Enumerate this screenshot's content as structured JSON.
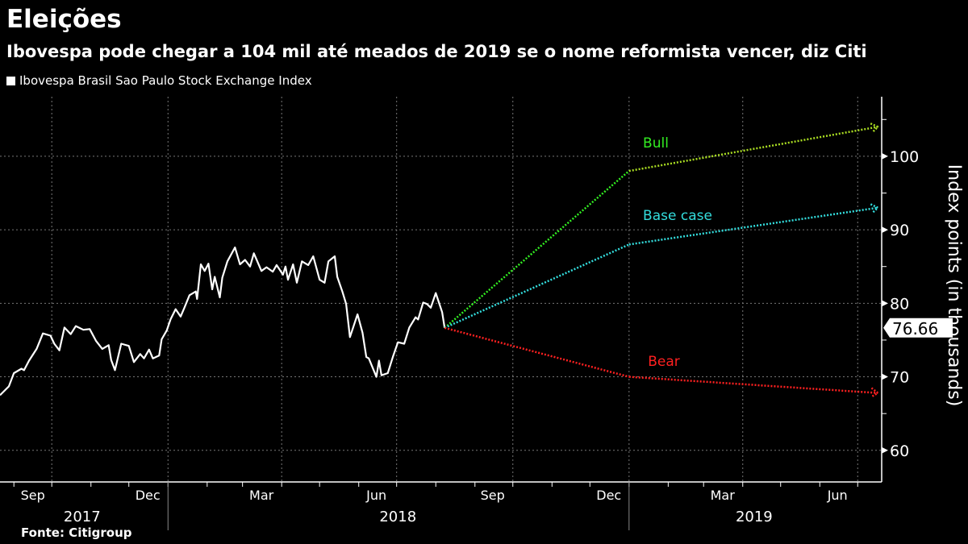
{
  "title": "Eleições",
  "subtitle": "Ibovespa pode chegar a 104 mil até meados de 2019 se o nome reformista vencer, diz Citi",
  "legend": "Ibovespa Brasil Sao Paulo Stock Exchange Index",
  "source": "Fonte: Citigroup",
  "chart_data": {
    "type": "line",
    "ylabel": "Index points  (in thousands)",
    "xlim": [
      "2017-08-21",
      "2019-07-20"
    ],
    "ylim": [
      55.7,
      108.1
    ],
    "yticks": [
      60,
      70,
      80,
      90,
      100
    ],
    "month_labels": [
      {
        "label": "Sep",
        "date": "2017-09-16"
      },
      {
        "label": "Dec",
        "date": "2017-12-16"
      },
      {
        "label": "Mar",
        "date": "2018-03-16"
      },
      {
        "label": "Jun",
        "date": "2018-06-15"
      },
      {
        "label": "Sep",
        "date": "2018-09-15"
      },
      {
        "label": "Dec",
        "date": "2018-12-16"
      },
      {
        "label": "Mar",
        "date": "2019-03-16"
      },
      {
        "label": "Jun",
        "date": "2019-06-15"
      }
    ],
    "year_labels": [
      {
        "label": "2017",
        "date": "2017-10-25"
      },
      {
        "label": "2018",
        "date": "2018-07-02"
      },
      {
        "label": "2019",
        "date": "2019-04-10"
      }
    ],
    "grid": true,
    "last_value_label": "76.66",
    "colors": {
      "index": "#ffffff",
      "Bull": "#33ee22",
      "Base case": "#33dddd",
      "Bear": "#ff2020",
      "Bull_end": "#aadd22"
    },
    "series": [
      {
        "name": "Ibovespa Brasil Sao Paulo Stock Exchange Index",
        "points": [
          [
            "2017-08-21",
            67.5
          ],
          [
            "2017-08-28",
            68.7
          ],
          [
            "2017-09-01",
            70.5
          ],
          [
            "2017-09-07",
            71.1
          ],
          [
            "2017-09-09",
            70.9
          ],
          [
            "2017-09-13",
            72.2
          ],
          [
            "2017-09-19",
            73.8
          ],
          [
            "2017-09-24",
            75.9
          ],
          [
            "2017-09-30",
            75.6
          ],
          [
            "2017-10-03",
            74.5
          ],
          [
            "2017-10-07",
            73.6
          ],
          [
            "2017-10-11",
            76.7
          ],
          [
            "2017-10-16",
            75.8
          ],
          [
            "2017-10-20",
            76.9
          ],
          [
            "2017-10-26",
            76.4
          ],
          [
            "2017-10-31",
            76.5
          ],
          [
            "2017-11-05",
            74.9
          ],
          [
            "2017-11-10",
            73.8
          ],
          [
            "2017-11-15",
            74.3
          ],
          [
            "2017-11-17",
            72.3
          ],
          [
            "2017-11-20",
            70.9
          ],
          [
            "2017-11-25",
            74.5
          ],
          [
            "2017-12-01",
            74.2
          ],
          [
            "2017-12-05",
            72.0
          ],
          [
            "2017-12-10",
            73.1
          ],
          [
            "2017-12-13",
            72.5
          ],
          [
            "2017-12-17",
            73.7
          ],
          [
            "2017-12-20",
            72.5
          ],
          [
            "2017-12-25",
            72.9
          ],
          [
            "2017-12-27",
            75.1
          ],
          [
            "2017-12-31",
            76.3
          ],
          [
            "2018-01-03",
            77.8
          ],
          [
            "2018-01-07",
            79.2
          ],
          [
            "2018-01-11",
            78.2
          ],
          [
            "2018-01-14",
            79.4
          ],
          [
            "2018-01-18",
            81.1
          ],
          [
            "2018-01-23",
            81.6
          ],
          [
            "2018-01-24",
            80.6
          ],
          [
            "2018-01-27",
            85.3
          ],
          [
            "2018-01-30",
            84.4
          ],
          [
            "2018-02-02",
            85.4
          ],
          [
            "2018-02-05",
            81.9
          ],
          [
            "2018-02-07",
            83.6
          ],
          [
            "2018-02-11",
            80.8
          ],
          [
            "2018-02-13",
            83.5
          ],
          [
            "2018-02-17",
            85.7
          ],
          [
            "2018-02-23",
            87.6
          ],
          [
            "2018-02-27",
            85.3
          ],
          [
            "2018-03-03",
            85.9
          ],
          [
            "2018-03-07",
            85.0
          ],
          [
            "2018-03-10",
            86.8
          ],
          [
            "2018-03-16",
            84.4
          ],
          [
            "2018-03-20",
            84.9
          ],
          [
            "2018-03-25",
            84.3
          ],
          [
            "2018-03-28",
            85.2
          ],
          [
            "2018-04-02",
            83.9
          ],
          [
            "2018-04-04",
            85.0
          ],
          [
            "2018-04-06",
            83.2
          ],
          [
            "2018-04-10",
            85.3
          ],
          [
            "2018-04-13",
            82.8
          ],
          [
            "2018-04-17",
            85.7
          ],
          [
            "2018-04-22",
            85.2
          ],
          [
            "2018-04-26",
            86.4
          ],
          [
            "2018-05-01",
            83.2
          ],
          [
            "2018-05-05",
            82.8
          ],
          [
            "2018-05-08",
            85.7
          ],
          [
            "2018-05-13",
            86.4
          ],
          [
            "2018-05-15",
            83.6
          ],
          [
            "2018-05-19",
            81.6
          ],
          [
            "2018-05-22",
            79.9
          ],
          [
            "2018-05-25",
            75.4
          ],
          [
            "2018-05-31",
            78.5
          ],
          [
            "2018-06-04",
            76.0
          ],
          [
            "2018-06-07",
            72.7
          ],
          [
            "2018-06-09",
            72.5
          ],
          [
            "2018-06-15",
            70.0
          ],
          [
            "2018-06-17",
            72.2
          ],
          [
            "2018-06-19",
            70.2
          ],
          [
            "2018-06-24",
            70.5
          ],
          [
            "2018-06-28",
            72.7
          ],
          [
            "2018-07-02",
            74.7
          ],
          [
            "2018-07-07",
            74.5
          ],
          [
            "2018-07-11",
            76.7
          ],
          [
            "2018-07-16",
            78.1
          ],
          [
            "2018-07-18",
            77.8
          ],
          [
            "2018-07-22",
            80.1
          ],
          [
            "2018-07-25",
            79.9
          ],
          [
            "2018-07-28",
            79.4
          ],
          [
            "2018-08-01",
            81.4
          ],
          [
            "2018-08-06",
            78.8
          ],
          [
            "2018-08-08",
            76.66
          ]
        ]
      },
      {
        "name": "Bull",
        "style": "dotted-arrow",
        "points": [
          [
            "2018-08-08",
            76.66
          ],
          [
            "2019-01-01",
            98
          ],
          [
            "2019-07-17",
            104
          ]
        ]
      },
      {
        "name": "Base case",
        "style": "dotted-arrow",
        "points": [
          [
            "2018-08-08",
            76.66
          ],
          [
            "2019-01-01",
            88
          ],
          [
            "2019-07-17",
            93
          ]
        ]
      },
      {
        "name": "Bear",
        "style": "dotted-arrow",
        "points": [
          [
            "2018-08-08",
            76.66
          ],
          [
            "2019-01-01",
            70
          ],
          [
            "2019-07-17",
            67.8
          ]
        ]
      }
    ]
  }
}
